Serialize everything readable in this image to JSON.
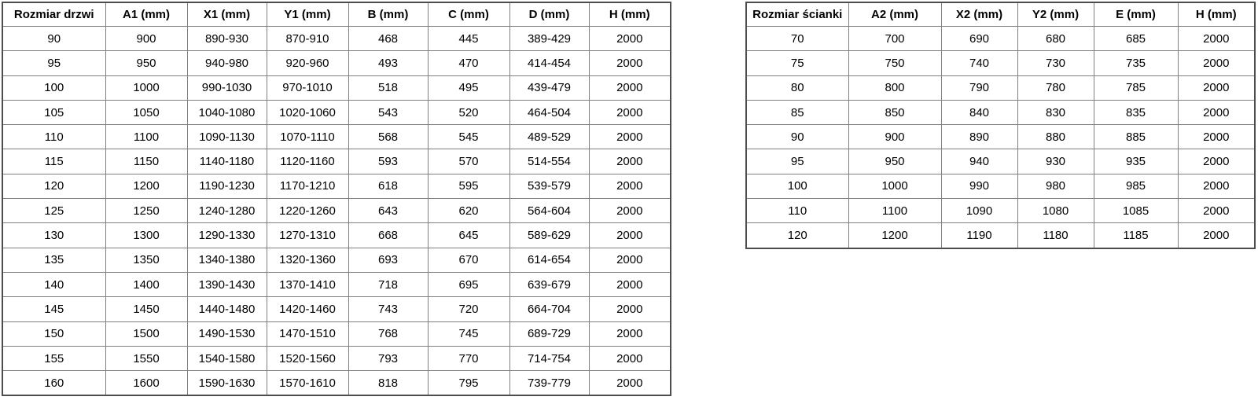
{
  "door_table": {
    "name": "door-size-table",
    "headers": [
      "Rozmiar drzwi",
      "A1 (mm)",
      "X1 (mm)",
      "Y1 (mm)",
      "B (mm)",
      "C (mm)",
      "D (mm)",
      "H (mm)"
    ],
    "rows": [
      [
        "90",
        "900",
        "890-930",
        "870-910",
        "468",
        "445",
        "389-429",
        "2000"
      ],
      [
        "95",
        "950",
        "940-980",
        "920-960",
        "493",
        "470",
        "414-454",
        "2000"
      ],
      [
        "100",
        "1000",
        "990-1030",
        "970-1010",
        "518",
        "495",
        "439-479",
        "2000"
      ],
      [
        "105",
        "1050",
        "1040-1080",
        "1020-1060",
        "543",
        "520",
        "464-504",
        "2000"
      ],
      [
        "110",
        "1100",
        "1090-1130",
        "1070-1110",
        "568",
        "545",
        "489-529",
        "2000"
      ],
      [
        "115",
        "1150",
        "1140-1180",
        "1120-1160",
        "593",
        "570",
        "514-554",
        "2000"
      ],
      [
        "120",
        "1200",
        "1190-1230",
        "1170-1210",
        "618",
        "595",
        "539-579",
        "2000"
      ],
      [
        "125",
        "1250",
        "1240-1280",
        "1220-1260",
        "643",
        "620",
        "564-604",
        "2000"
      ],
      [
        "130",
        "1300",
        "1290-1330",
        "1270-1310",
        "668",
        "645",
        "589-629",
        "2000"
      ],
      [
        "135",
        "1350",
        "1340-1380",
        "1320-1360",
        "693",
        "670",
        "614-654",
        "2000"
      ],
      [
        "140",
        "1400",
        "1390-1430",
        "1370-1410",
        "718",
        "695",
        "639-679",
        "2000"
      ],
      [
        "145",
        "1450",
        "1440-1480",
        "1420-1460",
        "743",
        "720",
        "664-704",
        "2000"
      ],
      [
        "150",
        "1500",
        "1490-1530",
        "1470-1510",
        "768",
        "745",
        "689-729",
        "2000"
      ],
      [
        "155",
        "1550",
        "1540-1580",
        "1520-1560",
        "793",
        "770",
        "714-754",
        "2000"
      ],
      [
        "160",
        "1600",
        "1590-1630",
        "1570-1610",
        "818",
        "795",
        "739-779",
        "2000"
      ]
    ]
  },
  "wall_table": {
    "name": "wall-size-table",
    "headers": [
      "Rozmiar ścianki",
      "A2 (mm)",
      "X2 (mm)",
      "Y2 (mm)",
      "E (mm)",
      "H (mm)"
    ],
    "rows": [
      [
        "70",
        "700",
        "690",
        "680",
        "685",
        "2000"
      ],
      [
        "75",
        "750",
        "740",
        "730",
        "735",
        "2000"
      ],
      [
        "80",
        "800",
        "790",
        "780",
        "785",
        "2000"
      ],
      [
        "85",
        "850",
        "840",
        "830",
        "835",
        "2000"
      ],
      [
        "90",
        "900",
        "890",
        "880",
        "885",
        "2000"
      ],
      [
        "95",
        "950",
        "940",
        "930",
        "935",
        "2000"
      ],
      [
        "100",
        "1000",
        "990",
        "980",
        "985",
        "2000"
      ],
      [
        "110",
        "1100",
        "1090",
        "1080",
        "1085",
        "2000"
      ],
      [
        "120",
        "1200",
        "1190",
        "1180",
        "1185",
        "2000"
      ]
    ]
  },
  "colors": {
    "background": "#ffffff",
    "border_outer": "#4d4d4d",
    "border_inner": "#7f7f7f",
    "text": "#000000"
  }
}
